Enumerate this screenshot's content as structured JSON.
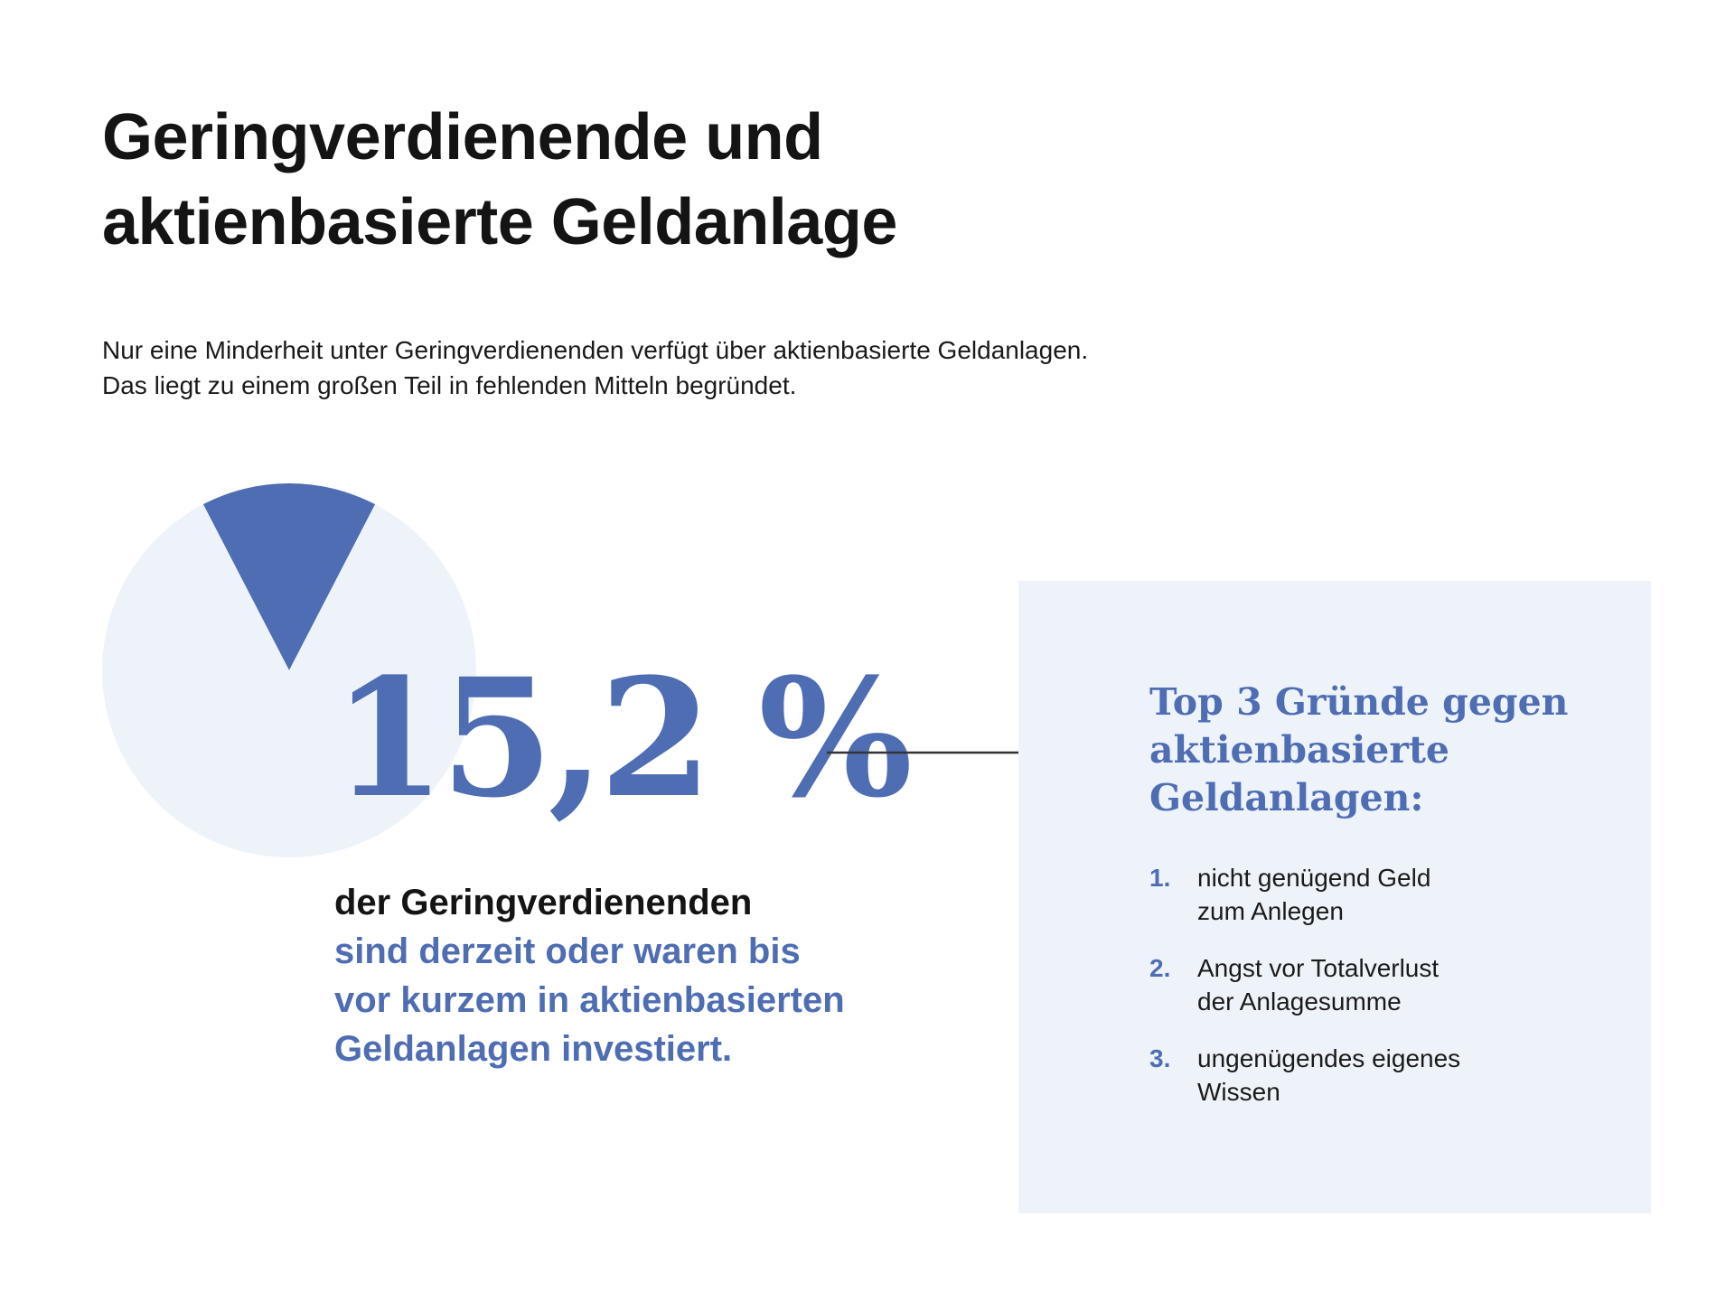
{
  "title": {
    "line1": "Geringverdienende und",
    "line2": "aktienbasierte Geldanlage"
  },
  "intro": {
    "line1": "Nur eine Minderheit unter Geringverdienenden verfügt über aktienbasierte Geldanlagen.",
    "line2": "Das liegt zu einem großen Teil in fehlenden Mitteln begründet."
  },
  "chart_data": {
    "type": "pie",
    "categories": [
      "sind derzeit oder waren bis vor kurzem in aktienbasierten Geldanlagen investiert",
      ""
    ],
    "values": [
      15.2,
      84.8
    ],
    "colors": [
      "#4f6db3",
      "#eef3fa"
    ],
    "label": "15,2 %"
  },
  "statement": {
    "line1": "der Geringverdienenden",
    "line2": "sind derzeit oder waren bis",
    "line3": "vor kurzem in aktienbasierten",
    "line4": "Geldanlagen investiert."
  },
  "reasons": {
    "title_line1": "Top 3 Gründe gegen",
    "title_line2": "aktienbasierte",
    "title_line3": "Geldanlagen:",
    "items": [
      {
        "num": "1.",
        "line1": "nicht genügend Geld",
        "line2": "zum Anlegen"
      },
      {
        "num": "2.",
        "line1": "Angst vor Totalverlust",
        "line2": "der Anlagesumme"
      },
      {
        "num": "3.",
        "line1": "ungenügendes eigenes",
        "line2": "Wissen"
      }
    ]
  },
  "colors": {
    "accent": "#4f6db3",
    "light": "#eef3fa",
    "text": "#141414",
    "arrow": "#333333"
  }
}
